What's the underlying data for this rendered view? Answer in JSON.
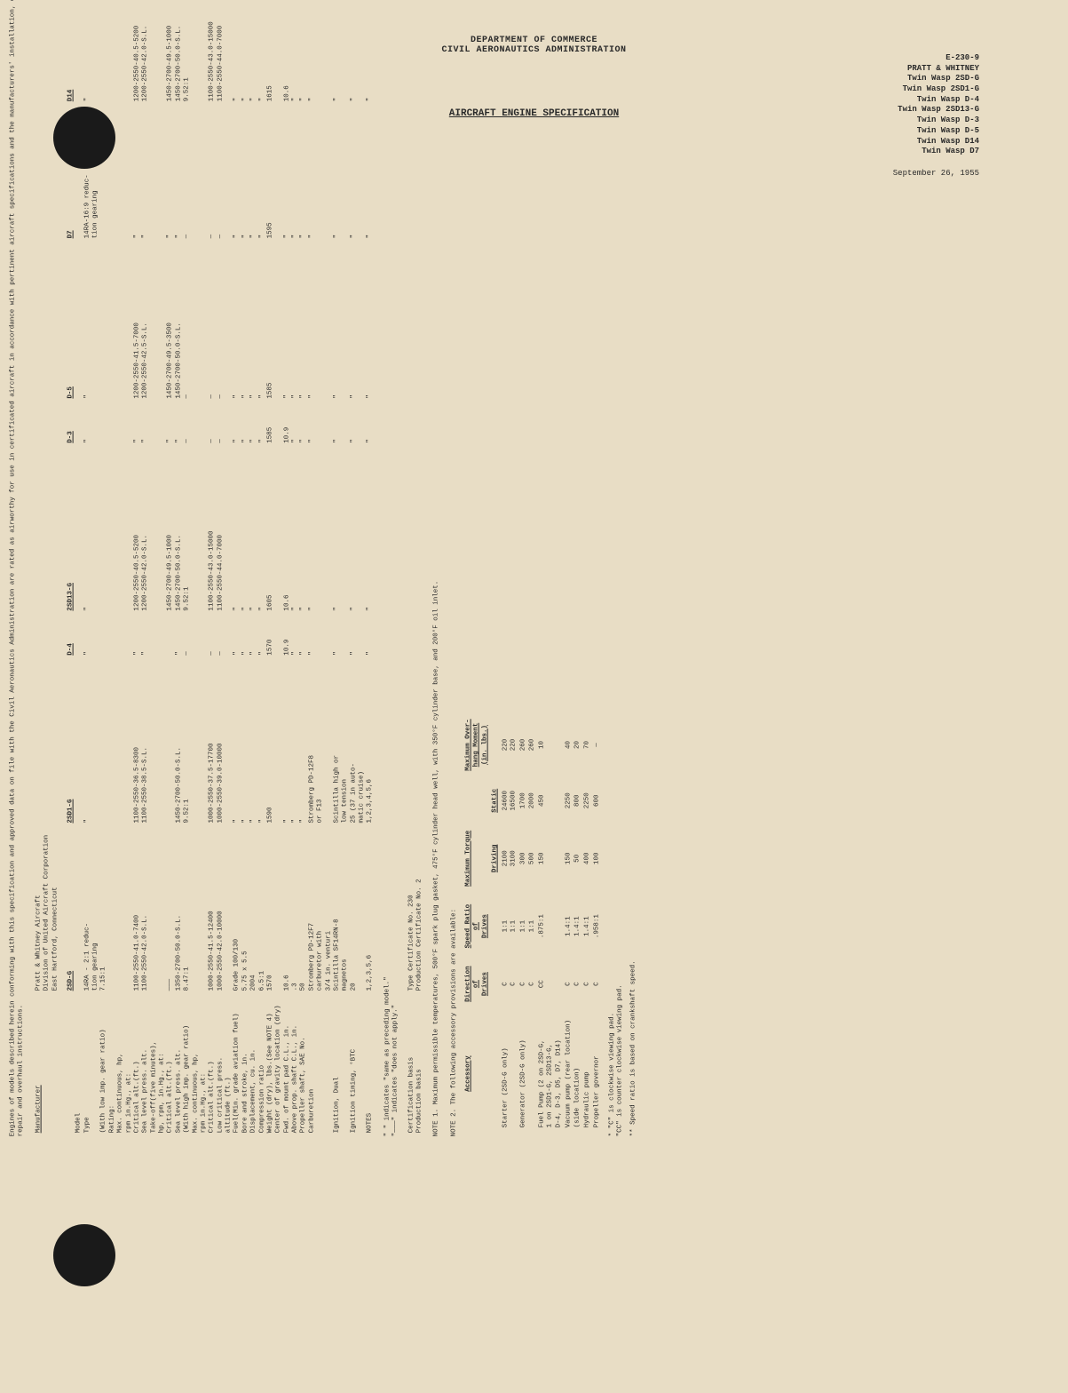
{
  "header": {
    "dept1": "DEPARTMENT OF COMMERCE",
    "dept2": "CIVIL AERONAUTICS ADMINISTRATION",
    "doc_no": "E-230-9",
    "mfr": "PRATT & WHITNEY",
    "models": [
      "Twin Wasp 2SD-G",
      "Twin Wasp 2SD1-G",
      "Twin Wasp D-4",
      "Twin Wasp 2SD13-G",
      "Twin Wasp D-3",
      "Twin Wasp D-5",
      "Twin Wasp D14",
      "Twin Wasp D7"
    ],
    "date": "September 26, 1955",
    "section_title": "AIRCRAFT ENGINE SPECIFICATION"
  },
  "intro": "Engines of models described herein conforming with this specification and approved data on file with the Civil Aeronautics Administration are rated as airworthy for use in certificated aircraft in accordance with pertinent aircraft specifications and the manufacturers' installation, operation, repair and overhaul instructions.",
  "manufacturer_label": "Manufacturer",
  "manufacturer": [
    "Pratt & Whitney Aircraft",
    "Division of United Aircraft Corporation",
    "East Hartford, Connecticut"
  ],
  "columns": [
    "",
    "2SD-G",
    "2SD1-G",
    "D-4",
    "2SD13-G",
    "D-3",
    "D-5",
    "D7",
    "D14"
  ],
  "rows": [
    {
      "l": "Model",
      "c": [
        "",
        "",
        "",
        "",
        "",
        "",
        "",
        ""
      ]
    },
    {
      "l": "Type",
      "c": [
        "14RA - 2:1 reduc-\ntion gearing",
        "\"",
        "\"",
        "\"",
        "\"",
        "\"",
        "14RA-16:9 reduc-\ntion gearing",
        "\""
      ]
    },
    {
      "l": "(With low imp. gear ratio)",
      "c": [
        "7.15:1",
        "",
        "",
        "",
        "",
        "",
        "",
        ""
      ]
    },
    {
      "l": "Rating:",
      "c": [
        "",
        "",
        "",
        "",
        "",
        "",
        "",
        ""
      ]
    },
    {
      "l": "Max. continuous, hp,\nrpm in.Hg., at:",
      "c": [
        "",
        "",
        "",
        "",
        "",
        "",
        "",
        ""
      ]
    },
    {
      "l": "  Critical alt.(ft.)",
      "c": [
        "1100-2550-41.0-7400",
        "1100-2550-36.5-8300",
        "\"",
        "1200-2550-40.5-5200",
        "\"",
        "1200-2550-41.5-7000",
        "\"",
        "1200-2550-40.5-5200"
      ]
    },
    {
      "l": "  Sea level press. alt.",
      "c": [
        "1100-2550-42.0-S.L.",
        "1100-2550-38.5-S.L.",
        "\"",
        "1200-2550-42.0-S.L.",
        "\"",
        "1200-2550-42.5-S.L.",
        "\"",
        "1200-2550-42.0-S.L."
      ]
    },
    {
      "l": "Take-off(five minutes),\nhp, rpm, in.Hg., at:",
      "c": [
        "",
        "",
        "",
        "",
        "",
        "",
        "",
        ""
      ]
    },
    {
      "l": "  Critical alt.(ft.)",
      "c": [
        "———",
        "",
        "",
        "1450-2700-49.5-1000",
        "\"",
        "1450-2700-49.5-3500",
        "\"",
        "1450-2700-49.5-1000"
      ]
    },
    {
      "l": "  Sea level press. alt.",
      "c": [
        "1350-2700-50.0-S.L.",
        "1450-2700-50.0-S.L.",
        "\"",
        "1450-2700-50.0-S.L.",
        "\"",
        "1450-2700-50.0-S.L.",
        "\"",
        "1450-2700-50.0-S.L."
      ]
    },
    {
      "l": "(With high imp. gear ratio)",
      "c": [
        "8.47:1",
        "9.52:1",
        "—",
        "9.52:1",
        "—",
        "—",
        "—",
        "9.52:1"
      ]
    },
    {
      "l": "Max. continuous, hp,\nrpm in.Hg., at:",
      "c": [
        "",
        "",
        "",
        "",
        "",
        "",
        "",
        ""
      ]
    },
    {
      "l": "  Critical alt.(ft.)",
      "c": [
        "1000-2550-41.5-12400",
        "1000-2550-37.5-17700",
        "—",
        "1100-2550-43.0-15000",
        "—",
        "—",
        "—",
        "1100-2550-43.0-15000"
      ]
    },
    {
      "l": "  Low critical press.\n  altitude (ft.)",
      "c": [
        "1000-2550-42.0-10000",
        "1000-2550-39.0-10000",
        "—",
        "1100-2550-44.0-7000",
        "—",
        "—",
        "—",
        "1100-2550-44.0-7000"
      ]
    },
    {
      "l": "",
      "c": [
        "",
        "",
        "",
        "",
        "",
        "",
        "",
        ""
      ]
    },
    {
      "l": "Fuel(Min. grade aviation fuel)",
      "c": [
        "Grade 100/130",
        "\"",
        "\"",
        "\"",
        "\"",
        "\"",
        "\"",
        "\""
      ]
    },
    {
      "l": "Bore and stroke, in.",
      "c": [
        "5.75 x 5.5",
        "\"",
        "\"",
        "\"",
        "\"",
        "\"",
        "\"",
        "\""
      ]
    },
    {
      "l": "Displacement, cu. in.",
      "c": [
        "2004",
        "\"",
        "\"",
        "\"",
        "\"",
        "\"",
        "\"",
        "\""
      ]
    },
    {
      "l": "Compression ratio",
      "c": [
        "6.5:1",
        "\"",
        "\"",
        "\"",
        "\"",
        "\"",
        "\"",
        "\""
      ]
    },
    {
      "l": "Weight (dry), lbs.(See NOTE 4)",
      "c": [
        "1570",
        "1590",
        "1570",
        "1605",
        "1585",
        "1585",
        "1595",
        "1615"
      ]
    },
    {
      "l": "Center of gravity location (dry)",
      "c": [
        "",
        "",
        "",
        "",
        "",
        "",
        "",
        ""
      ]
    },
    {
      "l": "  Fwd. of mount pad C.L., in.",
      "c": [
        "10.6",
        "\"",
        "10.9",
        "10.6",
        "10.9",
        "\"",
        "\"",
        "10.6"
      ]
    },
    {
      "l": "  Above prop. shaft C.L., in.",
      "c": [
        ".3",
        "\"",
        "\"",
        "\"",
        "\"",
        "\"",
        "\"",
        "\""
      ]
    },
    {
      "l": "Propeller shaft, SAE No.",
      "c": [
        "50",
        "\"",
        "\"",
        "\"",
        "\"",
        "\"",
        "\"",
        "\""
      ]
    },
    {
      "l": "Carburetion",
      "c": [
        "Stromberg PD-12F7\ncarburetor with\n3/4 in. venturi",
        "Stromberg PD-12F8\nor F13",
        "\"",
        "\"",
        "\"",
        "\"",
        "\"",
        "\""
      ]
    },
    {
      "l": "Ignition, Dual",
      "c": [
        "Scintilla SF14RN-8\nmagnetos",
        "Scintilla high or\nlow tension",
        "\"",
        "\"",
        "\"",
        "\"",
        "\"",
        "\""
      ]
    },
    {
      "l": "Ignition timing, °BTC",
      "c": [
        "20",
        "25 (37 in auto-\nmatic cruise)",
        "\"",
        "\"",
        "\"",
        "\"",
        "\"",
        "\""
      ]
    },
    {
      "l": "",
      "c": [
        "",
        "",
        "",
        "",
        "",
        "",
        "",
        ""
      ]
    },
    {
      "l": "NOTES",
      "c": [
        "1,2,3,5,6",
        "1,2,3,4,5,6",
        "\"",
        "\"",
        "\"",
        "\"",
        "\"",
        "\""
      ]
    }
  ],
  "legend": "\" \" indicates \"same as preceding model.\"\n\"———\" indicates \"does not apply.\"",
  "cert": {
    "l1": "Certification basis",
    "v1": "Type Certificate No. 230",
    "l2": "Production basis",
    "v2": "Production Certificate No. 2"
  },
  "note1": "NOTE 1.  Maximum permissible temperatures, 500°F spark plug gasket, 475°F cylinder head well, with 350°F cylinder base, and 200°F oil inlet.",
  "note2": "NOTE 2.  The following accessory provisions are available:",
  "acc_headers": [
    "Accessory",
    "Direction\nof\nDrives",
    "Speed Ratio\nof\nDrives",
    "Maximum Torque",
    "",
    "Maximum Over-\nhang Moment\n(in. lbs.)"
  ],
  "acc_sub": [
    "",
    "",
    "",
    "Driving",
    "Static",
    ""
  ],
  "acc_rows": [
    [
      "Starter (2SD-G only)",
      "C\nC",
      "1:1\n1:1",
      "2100\n3100",
      "24600\n16500",
      "220\n220"
    ],
    [
      "Generator (2SD-G only)",
      "C\nC",
      "1:1\n1:1",
      "300\n500",
      "1700\n2000",
      "260\n260"
    ],
    [
      "Fuel Pump (2 on 2SD-G,\n            1 on 2SD1-G, 2SD13-G,\n            D-4, D-3, D5, D7, D14)",
      "CC",
      ".875:1",
      "150",
      "450",
      "10"
    ],
    [
      "Vacuum pump (rear location)\n            (side location)",
      "C\nC",
      "1.4:1\n1.4:1",
      "150\n50",
      "2250\n800",
      "40\n20"
    ],
    [
      "Hydraulic pump",
      "C",
      "1.4:1",
      "400",
      "2250",
      "70"
    ],
    [
      "Propeller governor",
      "C",
      ".958:1",
      "100",
      "600",
      "—"
    ]
  ],
  "footnote1": "* \"C\" is clockwise viewing pad.\n  \"CC\" is counter clockwise viewing pad.",
  "footnote2": "** Speed ratio is based on crankshaft speed."
}
